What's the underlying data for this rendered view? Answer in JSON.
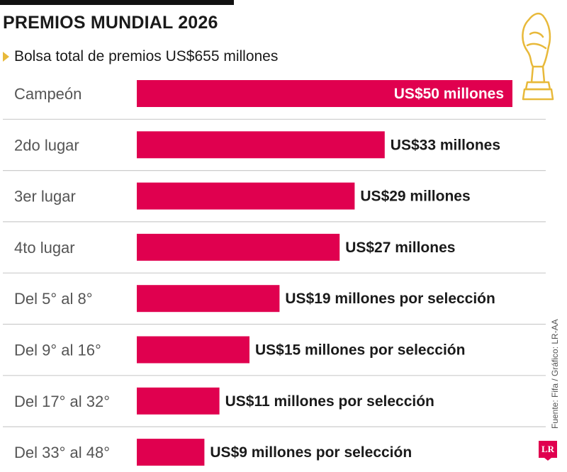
{
  "chart_data": {
    "type": "bar",
    "orientation": "horizontal",
    "title": "PREMIOS MUNDIAL 2026",
    "subtitle": "Bolsa total de premios US$655 millones",
    "categories": [
      "Campeón",
      "2do lugar",
      "3er lugar",
      "4to lugar",
      "Del 5° al 8°",
      "Del 9° al 16°",
      "Del 17° al 32°",
      "Del 33° al 48°"
    ],
    "values": [
      50,
      33,
      29,
      27,
      19,
      15,
      11,
      9
    ],
    "value_labels": [
      "US$50 millones",
      "US$33 millones",
      "US$29 millones",
      "US$27 millones",
      "US$19 millones por selección",
      "US$15 millones por selección",
      "US$11 millones por selección",
      "US$9 millones por selección"
    ],
    "unit": "US$ millones",
    "xlim": [
      0,
      50
    ],
    "grid": false,
    "legend": "none",
    "source": "Fuente: Fifa / Gráfico: LR-AA"
  },
  "colors": {
    "bar": "#e0004f",
    "inside_label": "#ffffff",
    "outside_label": "#1a1a1a",
    "separator": "#cccccc",
    "trophy": "#e8b93a",
    "logo": "#e0004f"
  },
  "logo_text": "LR",
  "icons": {
    "trophy": "trophy-icon",
    "bullet": "triangle-bullet-icon"
  }
}
